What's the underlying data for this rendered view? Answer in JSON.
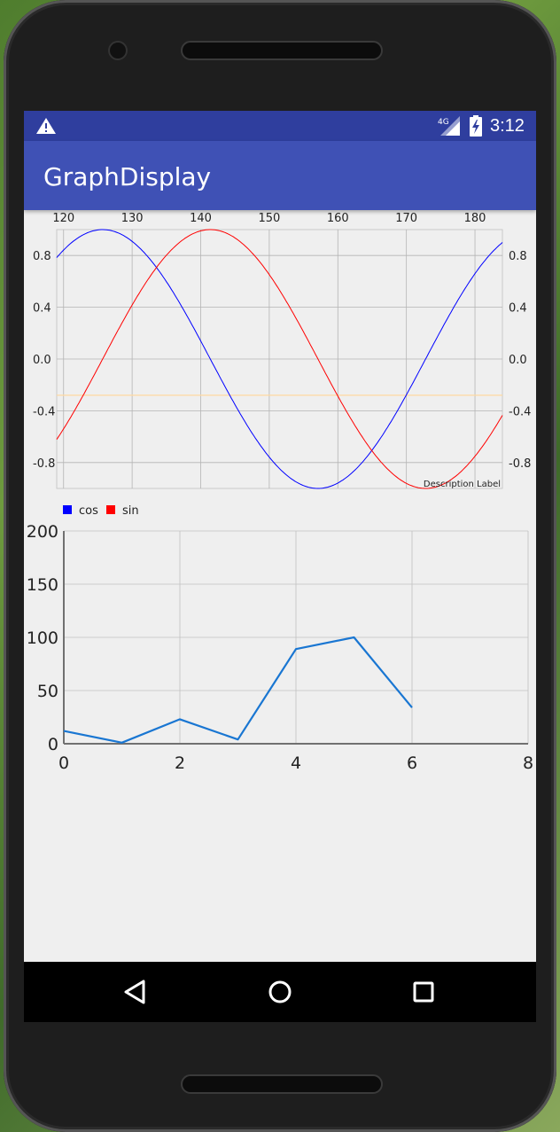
{
  "status_bar": {
    "time": "3:12",
    "network": "4G",
    "icons": [
      "warning-icon",
      "signal-icon",
      "battery-icon"
    ]
  },
  "app_bar": {
    "title": "GraphDisplay"
  },
  "chart_data": [
    {
      "type": "line",
      "title": "",
      "description": "Description Label",
      "x_ticks": [
        120,
        130,
        140,
        150,
        160,
        170,
        180
      ],
      "xlim": [
        119,
        184
      ],
      "y_ticks": [
        -0.8,
        -0.4,
        0.0,
        0.4,
        0.8
      ],
      "y_tick_labels": [
        "-0.8",
        "-0.4",
        "0.0",
        "0.4",
        "0.8"
      ],
      "ylim": [
        -1.0,
        1.0
      ],
      "grid": true,
      "limit_line": {
        "value": -0.28,
        "color": "#ffd9a0"
      },
      "legend": {
        "position": "bottom-left",
        "entries": [
          {
            "label": "cos",
            "color": "#0000ff"
          },
          {
            "label": "sin",
            "color": "#ff0000"
          }
        ]
      },
      "series": [
        {
          "name": "cos",
          "color": "#0000ff",
          "function": "cos",
          "x_start": 119,
          "x_end": 184
        },
        {
          "name": "sin",
          "color": "#ff0000",
          "function": "sin",
          "x_start": 119,
          "x_end": 184
        }
      ],
      "axis_labels_left": true,
      "axis_labels_right": true
    },
    {
      "type": "line",
      "title": "",
      "xlabel": "",
      "ylabel": "",
      "x_ticks": [
        0,
        2,
        4,
        6,
        8
      ],
      "xlim": [
        0,
        8
      ],
      "y_ticks": [
        0,
        50,
        100,
        150,
        200
      ],
      "ylim": [
        0,
        200
      ],
      "grid": true,
      "series": [
        {
          "color": "#1976d2",
          "x": [
            0,
            1,
            2,
            3,
            4,
            5,
            6
          ],
          "y": [
            12,
            1,
            23,
            4,
            89,
            100,
            34
          ]
        }
      ]
    }
  ],
  "nav_bar": {
    "icons": [
      "back-icon",
      "home-icon",
      "recent-apps-icon"
    ]
  }
}
